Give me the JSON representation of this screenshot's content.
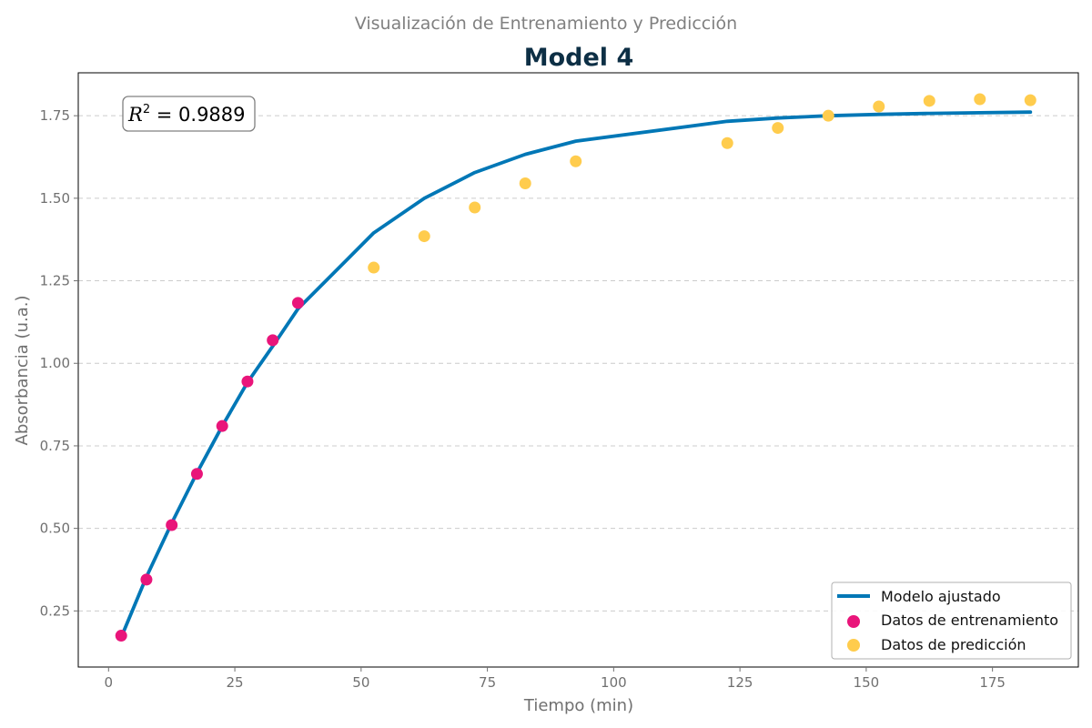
{
  "chart_data": {
    "type": "line",
    "suptitle": "Visualización de Entrenamiento y Predicción",
    "title": "Model 4",
    "xlabel": "Tiempo (min)",
    "ylabel": "Absorbancia (u.a.)",
    "xlim": [
      -6,
      192
    ],
    "ylim": [
      0.08,
      1.88
    ],
    "xticks": [
      0,
      25,
      50,
      75,
      100,
      125,
      150,
      175
    ],
    "yticks": [
      0.25,
      0.5,
      0.75,
      1.0,
      1.25,
      1.5,
      1.75
    ],
    "xtick_labels": [
      "0",
      "25",
      "50",
      "75",
      "100",
      "125",
      "150",
      "175"
    ],
    "ytick_labels": [
      "0.25",
      "0.50",
      "0.75",
      "1.00",
      "1.25",
      "1.50",
      "1.75"
    ],
    "grid": "y-dashed",
    "legend_position": "lower-right",
    "annotation": {
      "r2_prefix": "R",
      "r2_sup": "2",
      "r2_text": " = 0.9889"
    },
    "colors": {
      "model": "#0077b6",
      "train": "#e9157a",
      "pred": "#ffcc4d"
    },
    "series": [
      {
        "name": "Modelo ajustado",
        "kind": "line",
        "x": [
          2.5,
          7.5,
          12.5,
          17.5,
          22.5,
          27.5,
          32.5,
          37.5,
          52.5,
          62.5,
          72.5,
          82.5,
          92.5,
          122.5,
          132.5,
          142.5,
          152.5,
          162.5,
          172.5,
          182.5
        ],
        "y": [
          0.17,
          0.353,
          0.516,
          0.668,
          0.81,
          0.942,
          1.052,
          1.165,
          1.395,
          1.5,
          1.578,
          1.633,
          1.673,
          1.733,
          1.743,
          1.75,
          1.754,
          1.757,
          1.759,
          1.761
        ]
      },
      {
        "name": "Datos de entrenamiento",
        "kind": "scatter",
        "x": [
          2.5,
          7.5,
          12.5,
          17.5,
          22.5,
          27.5,
          32.5,
          37.5
        ],
        "y": [
          0.175,
          0.345,
          0.51,
          0.665,
          0.81,
          0.945,
          1.07,
          1.183
        ]
      },
      {
        "name": "Datos de predicción",
        "kind": "scatter",
        "x": [
          52.5,
          62.5,
          72.5,
          82.5,
          92.5,
          122.5,
          132.5,
          142.5,
          152.5,
          162.5,
          172.5,
          182.5
        ],
        "y": [
          1.29,
          1.385,
          1.472,
          1.545,
          1.612,
          1.667,
          1.713,
          1.75,
          1.778,
          1.795,
          1.8,
          1.797
        ]
      }
    ]
  }
}
